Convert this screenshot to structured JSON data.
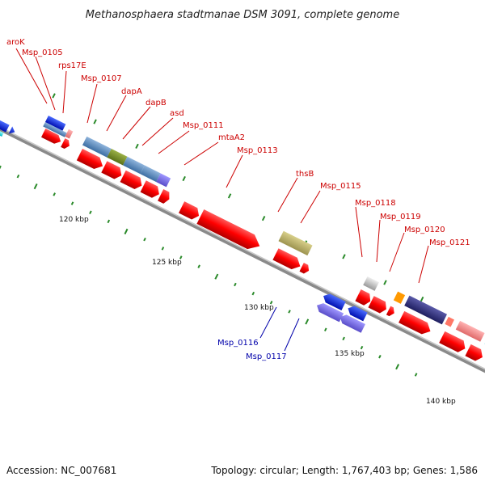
{
  "title": "Methanosphaera stadtmanae DSM 3091, complete genome",
  "footer": {
    "accession": "Accession: NC_007681",
    "topology": "Topology: circular; Length: 1,767,403 bp; Genes: 1,586"
  },
  "colors": {
    "red": "#ff0000",
    "blue_label": "#0000aa",
    "red_label": "#cc0000",
    "backbone": "#888888",
    "tick": "#2a8a2a"
  },
  "scale_labels": [
    "120 kbp",
    "125 kbp",
    "130 kbp",
    "135 kbp",
    "140 kbp"
  ],
  "gene_labels_top": [
    "aroK",
    "Msp_0105",
    "rps17E",
    "Msp_0107",
    "dapA",
    "dapB",
    "asd",
    "Msp_0111",
    "mtaA2",
    "Msp_0113",
    "thsB",
    "Msp_0115",
    "Msp_0118",
    "Msp_0119",
    "Msp_0120",
    "Msp_0121"
  ],
  "gene_labels_bottom": [
    "Msp_0116",
    "Msp_0117"
  ]
}
